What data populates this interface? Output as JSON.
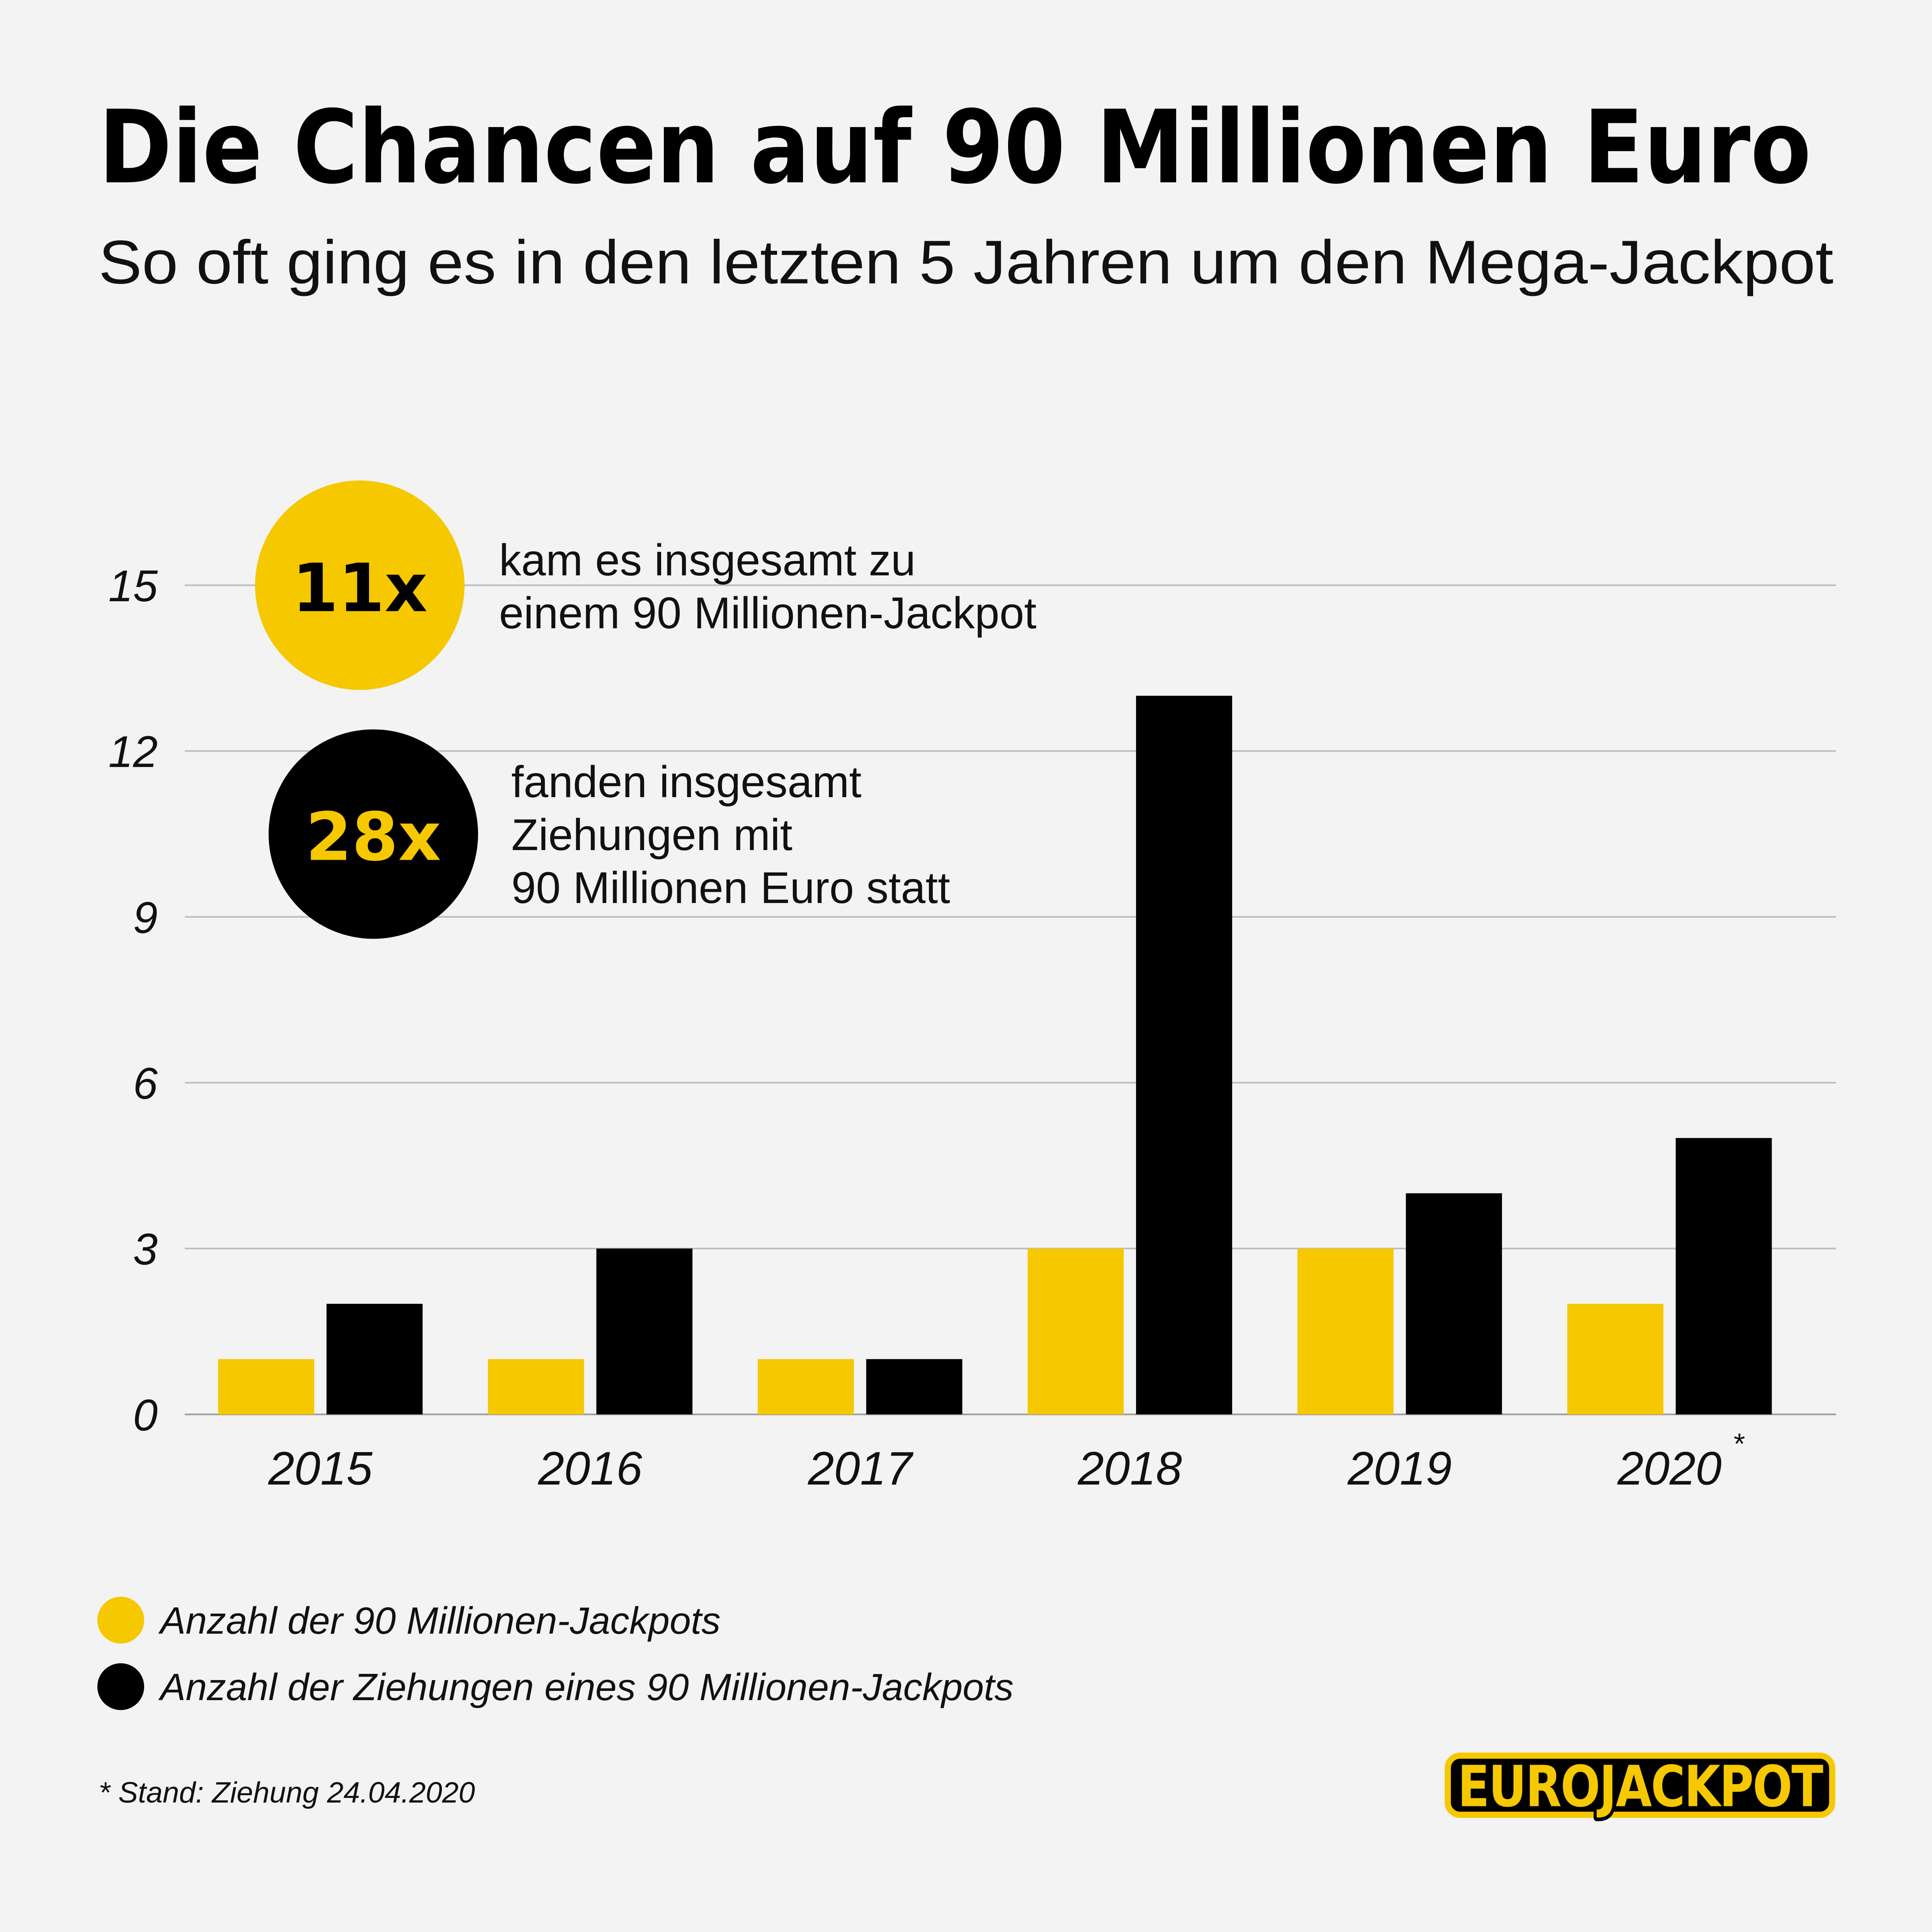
{
  "header": {
    "title": "Die Chancen auf 90 Millionen Euro",
    "subtitle": "So oft ging es in den letzten 5 Jahren um den Mega-Jackpot"
  },
  "callouts": [
    {
      "badge": "11x",
      "color": "#f5c800",
      "text_color": "#000000",
      "lines": [
        "kam es insgesamt zu",
        "einem 90 Millionen-Jackpot"
      ]
    },
    {
      "badge": "28x",
      "color": "#000000",
      "text_color": "#f5c800",
      "lines": [
        "fanden insgesamt",
        "Ziehungen mit",
        "90 Millionen Euro statt"
      ]
    }
  ],
  "chart_data": {
    "type": "bar",
    "title": "Die Chancen auf 90 Millionen Euro",
    "subtitle": "So oft ging es in den letzten 5 Jahren um den Mega-Jackpot",
    "categories": [
      "2015",
      "2016",
      "2017",
      "2018",
      "2019",
      "2020"
    ],
    "category_footnote_marks": [
      "",
      "",
      "",
      "",
      "",
      "*"
    ],
    "series": [
      {
        "name": "Anzahl der 90 Millionen-Jackpots",
        "color": "#f5c800",
        "values": [
          1,
          1,
          1,
          3,
          3,
          2
        ]
      },
      {
        "name": "Anzahl der Ziehungen eines 90 Millionen-Jackpots",
        "color": "#000000",
        "values": [
          2,
          3,
          1,
          13,
          4,
          5
        ]
      }
    ],
    "yticks": [
      "0",
      "3",
      "6",
      "9",
      "12",
      "15"
    ],
    "ylim": [
      0,
      15
    ],
    "grid": true,
    "legend_placement": "bottom-left"
  },
  "footnote": "* Stand: Ziehung 24.04.2020",
  "logo": {
    "text": "EUROJACKPOT"
  },
  "colors": {
    "background": "#f3f3f3",
    "yellow": "#f5c800",
    "black": "#000000",
    "grid": "#bdbdbd"
  }
}
